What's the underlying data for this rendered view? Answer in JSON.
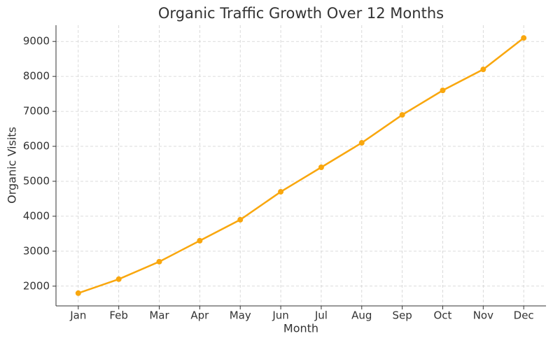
{
  "chart_data": {
    "type": "line",
    "title": "Organic Traffic Growth Over 12 Months",
    "x_label": "Month",
    "y_label": "Organic Visits",
    "categories": [
      "Jan",
      "Feb",
      "Mar",
      "Apr",
      "May",
      "Jun",
      "Jul",
      "Aug",
      "Sep",
      "Oct",
      "Nov",
      "Dec"
    ],
    "values": [
      1800,
      2200,
      2700,
      3300,
      3900,
      4700,
      5400,
      6100,
      6900,
      7600,
      8200,
      9100
    ],
    "color": "#f9a70e",
    "ylim": [
      1435,
      9465
    ],
    "yticks": [
      2000,
      3000,
      4000,
      5000,
      6000,
      7000,
      8000,
      9000
    ],
    "grid": true
  }
}
